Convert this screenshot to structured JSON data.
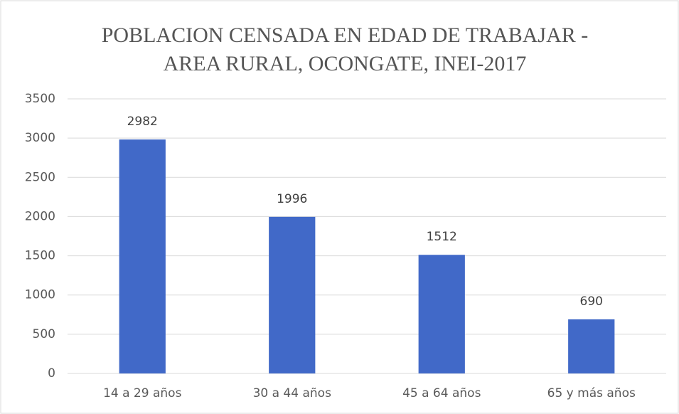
{
  "chart_data": {
    "type": "bar",
    "title": "POBLACION CENSADA EN EDAD DE TRABAJAR -",
    "subtitle": "AREA RURAL, OCONGATE, INEI-2017",
    "categories": [
      "14 a 29 años",
      "30 a 44 años",
      "45 a 64 años",
      "65 y más años"
    ],
    "values": [
      2982,
      1996,
      1512,
      690
    ],
    "color": "#4169c8",
    "ylim": [
      0,
      3500
    ],
    "yticks": [
      0,
      500,
      1000,
      1500,
      2000,
      2500,
      3000,
      3500
    ],
    "grid": true
  }
}
